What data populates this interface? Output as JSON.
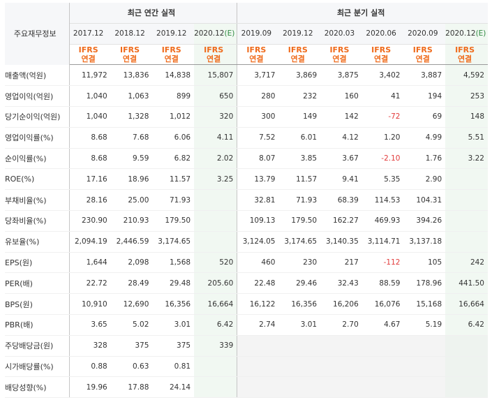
{
  "header": {
    "label_col": "주요재무정보",
    "annual_title": "최근 연간 실적",
    "quarter_title": "최근 분기 실적",
    "ifrs_top": "IFRS",
    "ifrs_bottom": "연결"
  },
  "periods": [
    {
      "label": "2017.12",
      "est": ""
    },
    {
      "label": "2018.12",
      "est": ""
    },
    {
      "label": "2019.12",
      "est": ""
    },
    {
      "label": "2020.12",
      "est": "(E)"
    },
    {
      "label": "2019.09",
      "est": ""
    },
    {
      "label": "2019.12",
      "est": ""
    },
    {
      "label": "2020.03",
      "est": ""
    },
    {
      "label": "2020.06",
      "est": ""
    },
    {
      "label": "2020.09",
      "est": ""
    },
    {
      "label": "2020.12",
      "est": "(E)"
    }
  ],
  "rows": [
    {
      "label": "매출액(억원)",
      "values": [
        "11,972",
        "13,836",
        "14,838",
        "15,807",
        "3,717",
        "3,869",
        "3,875",
        "3,402",
        "3,887",
        "4,592"
      ]
    },
    {
      "label": "영업이익(억원)",
      "values": [
        "1,040",
        "1,063",
        "899",
        "650",
        "280",
        "232",
        "160",
        "41",
        "194",
        "253"
      ]
    },
    {
      "label": "당기순이익(억원)",
      "values": [
        "1,040",
        "1,328",
        "1,012",
        "320",
        "300",
        "149",
        "142",
        "-72",
        "69",
        "148"
      ]
    },
    {
      "label": "영업이익률(%)",
      "values": [
        "8.68",
        "7.68",
        "6.06",
        "4.11",
        "7.52",
        "6.01",
        "4.12",
        "1.20",
        "4.99",
        "5.51"
      ]
    },
    {
      "label": "순이익률(%)",
      "values": [
        "8.68",
        "9.59",
        "6.82",
        "2.02",
        "8.07",
        "3.85",
        "3.67",
        "-2.10",
        "1.76",
        "3.22"
      ]
    },
    {
      "label": "ROE(%)",
      "values": [
        "17.16",
        "18.96",
        "11.57",
        "3.25",
        "13.79",
        "11.57",
        "9.41",
        "5.35",
        "2.90",
        ""
      ]
    },
    {
      "label": "부채비율(%)",
      "values": [
        "28.16",
        "25.00",
        "71.93",
        "",
        "32.81",
        "71.93",
        "68.39",
        "114.53",
        "104.31",
        ""
      ]
    },
    {
      "label": "당좌비율(%)",
      "values": [
        "230.90",
        "210.93",
        "179.50",
        "",
        "109.13",
        "179.50",
        "162.27",
        "469.93",
        "394.26",
        ""
      ]
    },
    {
      "label": "유보율(%)",
      "values": [
        "2,094.19",
        "2,446.59",
        "3,174.65",
        "",
        "3,124.05",
        "3,174.65",
        "3,140.35",
        "3,114.71",
        "3,137.18",
        ""
      ]
    },
    {
      "label": "EPS(원)",
      "values": [
        "1,644",
        "2,098",
        "1,568",
        "520",
        "460",
        "230",
        "217",
        "-112",
        "105",
        "242"
      ]
    },
    {
      "label": "PER(배)",
      "values": [
        "22.72",
        "28.49",
        "29.48",
        "205.60",
        "22.48",
        "29.46",
        "32.43",
        "88.59",
        "178.96",
        "441.50"
      ]
    },
    {
      "label": "BPS(원)",
      "values": [
        "10,910",
        "12,690",
        "16,356",
        "16,664",
        "16,122",
        "16,356",
        "16,206",
        "16,076",
        "15,168",
        "16,664"
      ]
    },
    {
      "label": "PBR(배)",
      "values": [
        "3.65",
        "5.02",
        "3.01",
        "6.42",
        "2.74",
        "3.01",
        "2.70",
        "4.67",
        "5.19",
        "6.42"
      ]
    },
    {
      "label": "주당배당금(원)",
      "values": [
        "328",
        "375",
        "375",
        "339",
        "",
        "",
        "",
        "",
        "",
        ""
      ]
    },
    {
      "label": "시가배당률(%)",
      "values": [
        "0.88",
        "0.63",
        "0.81",
        "",
        "",
        "",
        "",
        "",
        "",
        ""
      ]
    },
    {
      "label": "배당성향(%)",
      "values": [
        "19.96",
        "17.88",
        "24.14",
        "",
        "",
        "",
        "",
        "",
        "",
        ""
      ]
    }
  ],
  "colors": {
    "ifrs": "#ef6a1a",
    "estimate": "#2f8a41",
    "negative": "#e23b3b"
  }
}
